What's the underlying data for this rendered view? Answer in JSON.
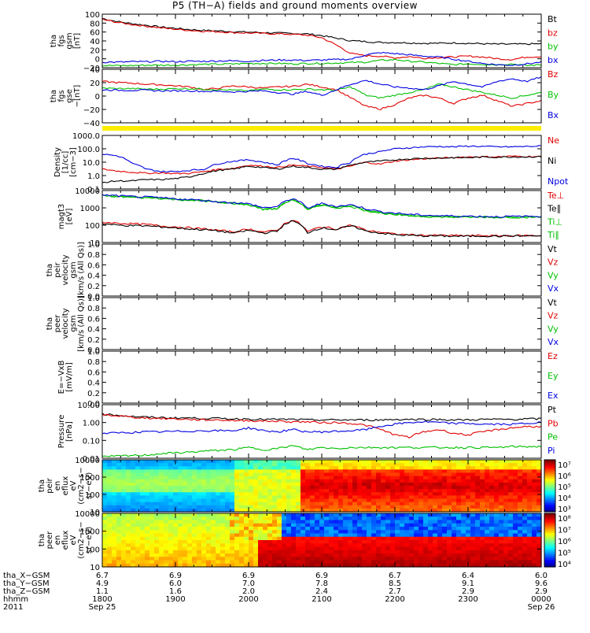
{
  "title": "P5 (TH−A) fields and ground moments overview",
  "chart_data": [
    {
      "id": "p1",
      "type": "line",
      "ylabel": [
        "tha",
        "fgs",
        "gsm",
        "[nT]"
      ],
      "yticks": [
        "100",
        "80",
        "60",
        "40",
        "20",
        "0",
        "−20"
      ],
      "ylim": [
        -25,
        100
      ],
      "legend": [
        {
          "name": "Bt",
          "color": "#000000"
        },
        {
          "name": "bz",
          "color": "#e00000"
        },
        {
          "name": "by",
          "color": "#00c000"
        },
        {
          "name": "bx",
          "color": "#0000e0"
        }
      ],
      "series": [
        {
          "name": "Bt",
          "color": "#000000",
          "values": [
            90,
            83,
            78,
            74,
            70,
            67,
            64,
            62,
            61,
            59,
            58,
            57,
            56,
            55,
            54,
            50,
            44,
            38,
            36,
            34,
            34,
            33,
            32,
            32,
            33,
            32,
            31,
            30,
            30,
            30,
            31
          ]
        },
        {
          "name": "bz",
          "color": "#e00000",
          "values": [
            88,
            81,
            76,
            72,
            68,
            65,
            62,
            60,
            59,
            57,
            56,
            55,
            54,
            53,
            51,
            45,
            28,
            8,
            3,
            2,
            -2,
            1,
            -3,
            -1,
            0,
            2,
            0,
            -4,
            -6,
            0,
            1
          ]
        },
        {
          "name": "by",
          "color": "#00c000",
          "values": [
            -20,
            -20,
            -20,
            -19,
            -19,
            -19,
            -18,
            -17,
            -17,
            -16,
            -15,
            -15,
            -15,
            -16,
            -15,
            -15,
            -14,
            -13,
            -12,
            -8,
            -6,
            -10,
            -12,
            -15,
            -18,
            -16,
            -17,
            -18,
            -16,
            -20,
            -18
          ]
        },
        {
          "name": "bx",
          "color": "#0000e0",
          "values": [
            -12,
            -12,
            -11,
            -11,
            -10,
            -11,
            -10,
            -10,
            -9,
            -9,
            -10,
            -8,
            -7,
            -7,
            -8,
            -7,
            -6,
            -5,
            5,
            10,
            8,
            5,
            2,
            0,
            -5,
            -10,
            -15,
            -18,
            -19,
            -16,
            -12
          ]
        }
      ]
    },
    {
      "id": "p2",
      "type": "line",
      "ylabel": [
        "tha",
        "fgs",
        "gse",
        "−[nT]"
      ],
      "yticks": [
        "40",
        "20",
        "0",
        "−20",
        "−40"
      ],
      "ylim": [
        -55,
        42
      ],
      "legend": [
        {
          "name": "Bz",
          "color": "#e00000"
        },
        {
          "name": "By",
          "color": "#00c000"
        },
        {
          "name": "Bx",
          "color": "#0000e0"
        }
      ],
      "series": [
        {
          "name": "Bz",
          "color": "#e00000",
          "values": [
            20,
            18,
            17,
            15,
            14,
            12,
            10,
            5,
            8,
            12,
            10,
            8,
            10,
            11,
            15,
            10,
            5,
            -10,
            -25,
            -30,
            -22,
            -10,
            -5,
            -10,
            -20,
            -10,
            -5,
            -15,
            -25,
            -20,
            -15
          ]
        },
        {
          "name": "By",
          "color": "#00c000",
          "values": [
            8,
            7,
            7,
            6,
            6,
            7,
            7,
            6,
            5,
            4,
            3,
            6,
            5,
            5,
            6,
            5,
            4,
            10,
            -5,
            -10,
            -5,
            0,
            5,
            15,
            10,
            5,
            0,
            -5,
            -10,
            -5,
            0
          ]
        },
        {
          "name": "Bx",
          "color": "#0000e0",
          "values": [
            5,
            4,
            4,
            4,
            3,
            3,
            3,
            2,
            2,
            1,
            2,
            3,
            0,
            -3,
            2,
            -5,
            5,
            15,
            22,
            15,
            10,
            8,
            5,
            12,
            20,
            15,
            10,
            20,
            25,
            20,
            28
          ]
        }
      ]
    },
    {
      "id": "p3",
      "type": "line",
      "log": true,
      "ylabel": [
        "Density",
        "[1/cc]",
        "[cm−3]"
      ],
      "yticks": [
        "1000.0",
        "100.0",
        "10.0",
        "1.0",
        "0.1"
      ],
      "ylim": [
        0.1,
        1000
      ],
      "legend": [
        {
          "name": "Ne",
          "color": "#e00000"
        },
        {
          "name": "Ni",
          "color": "#000000"
        },
        {
          "name": "Npot",
          "color": "#0000e0"
        }
      ],
      "series": [
        {
          "name": "Ne",
          "color": "#e00000",
          "values": [
            3,
            2.2,
            1.8,
            1.5,
            1.6,
            1.4,
            1.5,
            2,
            3,
            3.5,
            6,
            5,
            4,
            6,
            5,
            4,
            3,
            5,
            10,
            7,
            12,
            15,
            18,
            20,
            22,
            25,
            26,
            25,
            28,
            27,
            26
          ]
        },
        {
          "name": "Ni",
          "color": "#000000",
          "values": [
            0.3,
            0.4,
            0.4,
            0.5,
            0.5,
            0.6,
            0.8,
            1.5,
            2.5,
            3,
            5,
            4,
            3,
            5,
            4,
            3,
            3,
            6,
            10,
            12,
            15,
            18,
            20,
            20,
            22,
            22,
            24,
            24,
            25,
            25,
            26
          ]
        },
        {
          "name": "Npot",
          "color": "#0000e0",
          "values": [
            40,
            30,
            8,
            3,
            2,
            2,
            2.5,
            3,
            8,
            12,
            15,
            10,
            6,
            20,
            8,
            5,
            4,
            10,
            40,
            60,
            100,
            120,
            140,
            150,
            140,
            160,
            150,
            140,
            140,
            150,
            160
          ]
        }
      ]
    },
    {
      "id": "p4",
      "type": "line",
      "log": true,
      "ylabel": [
        "magt3",
        "[eV]"
      ],
      "yticks": [
        "10000",
        "1000",
        "100",
        "10"
      ],
      "ylim": [
        10,
        10000
      ],
      "legend": [
        {
          "name": "Te⊥",
          "color": "#e00000"
        },
        {
          "name": "Te∥",
          "color": "#000000"
        },
        {
          "name": "Ti⊥",
          "color": "#00c000"
        },
        {
          "name": "Ti∥",
          "color": "#00c000"
        }
      ],
      "series": [
        {
          "name": "Te⊥",
          "color": "#e00000",
          "values": [
            150,
            130,
            120,
            110,
            90,
            80,
            70,
            60,
            50,
            40,
            60,
            40,
            50,
            200,
            40,
            80,
            60,
            100,
            50,
            40,
            30,
            28,
            26,
            26,
            25,
            25,
            25,
            24,
            25,
            25,
            25
          ]
        },
        {
          "name": "Te∥",
          "color": "#000000",
          "values": [
            120,
            100,
            95,
            90,
            80,
            70,
            60,
            55,
            45,
            35,
            50,
            35,
            45,
            180,
            35,
            70,
            55,
            90,
            45,
            35,
            28,
            26,
            24,
            24,
            23,
            23,
            24,
            23,
            24,
            24,
            24
          ]
        },
        {
          "name": "Ti⊥",
          "color": "#00c000",
          "values": [
            5000,
            4500,
            4000,
            3800,
            3500,
            3000,
            2800,
            2500,
            2000,
            1800,
            1500,
            800,
            900,
            3000,
            700,
            1500,
            1000,
            1200,
            700,
            500,
            400,
            350,
            320,
            300,
            300,
            290,
            290,
            280,
            290,
            290,
            300
          ]
        },
        {
          "name": "Ti∥",
          "color": "#00c000",
          "values": [
            5200,
            4600,
            4200,
            3900,
            3600,
            3100,
            2900,
            2600,
            2100,
            1900,
            1600,
            850,
            950,
            3100,
            750,
            1600,
            1050,
            1300,
            750,
            520,
            420,
            360,
            330,
            310,
            300,
            300,
            295,
            290,
            295,
            295,
            300
          ]
        },
        {
          "name": "Ti (blue)",
          "color": "#0000e0",
          "values": [
            5500,
            5000,
            4500,
            4200,
            3800,
            3300,
            3000,
            2700,
            2200,
            2000,
            1700,
            1000,
            1200,
            3500,
            900,
            1800,
            1200,
            1500,
            900,
            600,
            500,
            420,
            380,
            350,
            340,
            330,
            320,
            310,
            320,
            320,
            330
          ]
        }
      ]
    },
    {
      "id": "p5",
      "type": "line",
      "ylabel": [
        "tha",
        "peir",
        "velocity",
        "gsm",
        "[km/s (All Qs)]"
      ],
      "yticks": [
        "1.0",
        "0.8",
        "0.6",
        "0.4",
        "0.2",
        "0.0"
      ],
      "ylim": [
        0,
        1
      ],
      "legend": [
        {
          "name": "Vt",
          "color": "#000000"
        },
        {
          "name": "Vz",
          "color": "#e00000"
        },
        {
          "name": "Vy",
          "color": "#00c000"
        },
        {
          "name": "Vx",
          "color": "#0000e0"
        }
      ],
      "series": []
    },
    {
      "id": "p6",
      "type": "line",
      "ylabel": [
        "tha",
        "peer",
        "velocity",
        "gsm",
        "[km/s (All Qs)]"
      ],
      "yticks": [
        "1.0",
        "0.8",
        "0.6",
        "0.4",
        "0.2",
        "0.0"
      ],
      "ylim": [
        0,
        1
      ],
      "legend": [
        {
          "name": "Vt",
          "color": "#000000"
        },
        {
          "name": "Vz",
          "color": "#e00000"
        },
        {
          "name": "Vy",
          "color": "#00c000"
        },
        {
          "name": "Vx",
          "color": "#0000e0"
        }
      ],
      "series": []
    },
    {
      "id": "p7",
      "type": "line",
      "ylabel": [
        "E=−VxB",
        "[mV/m]"
      ],
      "yticks": [
        "1.0",
        "0.8",
        "0.6",
        "0.4",
        "0.2",
        "0.0"
      ],
      "ylim": [
        0,
        1
      ],
      "legend": [
        {
          "name": "Ez",
          "color": "#e00000"
        },
        {
          "name": "Ey",
          "color": "#00c000"
        },
        {
          "name": "Ex",
          "color": "#0000e0"
        }
      ],
      "series": []
    },
    {
      "id": "p8",
      "type": "line",
      "log": true,
      "ylabel": [
        "Pressure",
        "[nPa]"
      ],
      "yticks": [
        "10.00",
        "1.00",
        "0.10",
        "0.01"
      ],
      "ylim": [
        0.01,
        10
      ],
      "legend": [
        {
          "name": "Pt",
          "color": "#000000"
        },
        {
          "name": "Pb",
          "color": "#e00000"
        },
        {
          "name": "Pe",
          "color": "#00c000"
        },
        {
          "name": "Pi",
          "color": "#0000e0"
        }
      ],
      "series": [
        {
          "name": "Pt",
          "color": "#000000",
          "values": [
            3,
            2.6,
            2.2,
            2,
            1.9,
            1.8,
            1.8,
            1.7,
            1.7,
            1.6,
            1.6,
            1.5,
            1.5,
            1.5,
            1.4,
            1.4,
            1.4,
            1.4,
            1.4,
            1.4,
            1.5,
            1.5,
            1.5,
            1.5,
            1.4,
            1.4,
            1.5,
            1.5,
            1.5,
            1.6,
            1.6
          ]
        },
        {
          "name": "Pb",
          "color": "#e00000",
          "values": [
            2.8,
            2.4,
            2,
            1.8,
            1.7,
            1.6,
            1.5,
            1.4,
            1.4,
            1.3,
            1.3,
            1.2,
            1.2,
            1.1,
            1.1,
            1,
            1,
            0.9,
            0.7,
            0.4,
            0.2,
            0.15,
            0.3,
            0.4,
            0.25,
            0.2,
            0.3,
            0.4,
            0.5,
            0.6,
            0.6
          ]
        },
        {
          "name": "Pe",
          "color": "#00c000",
          "values": [
            0.012,
            0.013,
            0.014,
            0.015,
            0.018,
            0.02,
            0.022,
            0.025,
            0.028,
            0.03,
            0.04,
            0.03,
            0.035,
            0.05,
            0.03,
            0.04,
            0.035,
            0.04,
            0.04,
            0.04,
            0.04,
            0.04,
            0.04,
            0.04,
            0.04,
            0.04,
            0.04,
            0.04,
            0.045,
            0.045,
            0.045
          ]
        },
        {
          "name": "Pi",
          "color": "#0000e0",
          "values": [
            0.25,
            0.26,
            0.28,
            0.3,
            0.3,
            0.32,
            0.33,
            0.35,
            0.35,
            0.35,
            0.5,
            0.35,
            0.3,
            0.4,
            0.3,
            0.3,
            0.32,
            0.35,
            0.4,
            0.6,
            0.8,
            1,
            1.1,
            1,
            0.9,
            0.9,
            0.8,
            0.8,
            0.8,
            0.9,
            1
          ]
        }
      ]
    },
    {
      "id": "p9",
      "type": "heatmap",
      "ylabel": [
        "tha",
        "peir",
        "en",
        "eflux",
        "eV",
        "(cm2−s−",
        "sr−eV)"
      ],
      "yticks": [
        "10000",
        "1000",
        "100",
        "10"
      ],
      "ylim": [
        10,
        20000
      ],
      "colorbar": [
        "10⁷",
        "10⁶",
        "10⁵",
        "10⁴",
        "10³"
      ],
      "colorbar_range": [
        3,
        7
      ]
    },
    {
      "id": "p10",
      "type": "heatmap",
      "ylabel": [
        "tha",
        "peer",
        "en",
        "eflux",
        "eV",
        "(cm2−s−",
        "sr−eV)"
      ],
      "yticks": [
        "10000",
        "1000",
        "100",
        "10"
      ],
      "ylim": [
        10,
        20000
      ],
      "colorbar": [
        "10⁸",
        "10⁷",
        "10⁶",
        "10⁵",
        "10⁴"
      ],
      "colorbar_range": [
        4,
        8
      ]
    }
  ],
  "axis_footer": {
    "row_labels": [
      "tha_X−GSM",
      "tha_Y−GSM",
      "tha_Z−GSM",
      "hhmm",
      "2011"
    ],
    "columns": [
      {
        "x": "6.7",
        "y": "4.9",
        "z": "1.1",
        "hhmm": "1800",
        "date": "Sep 25"
      },
      {
        "x": "6.9",
        "y": "6.0",
        "z": "1.6",
        "hhmm": "1900",
        "date": ""
      },
      {
        "x": "6.9",
        "y": "7.0",
        "z": "2.0",
        "hhmm": "2000",
        "date": ""
      },
      {
        "x": "6.9",
        "y": "7.8",
        "z": "2.4",
        "hhmm": "2100",
        "date": ""
      },
      {
        "x": "6.7",
        "y": "8.5",
        "z": "2.7",
        "hhmm": "2200",
        "date": ""
      },
      {
        "x": "6.4",
        "y": "9.1",
        "z": "2.9",
        "hhmm": "2300",
        "date": ""
      },
      {
        "x": "6.0",
        "y": "9.6",
        "z": "2.9",
        "hhmm": "0000",
        "date": "Sep 26"
      }
    ]
  },
  "colors": {
    "axis": "#000000",
    "flag_bar": "#ffee00"
  }
}
